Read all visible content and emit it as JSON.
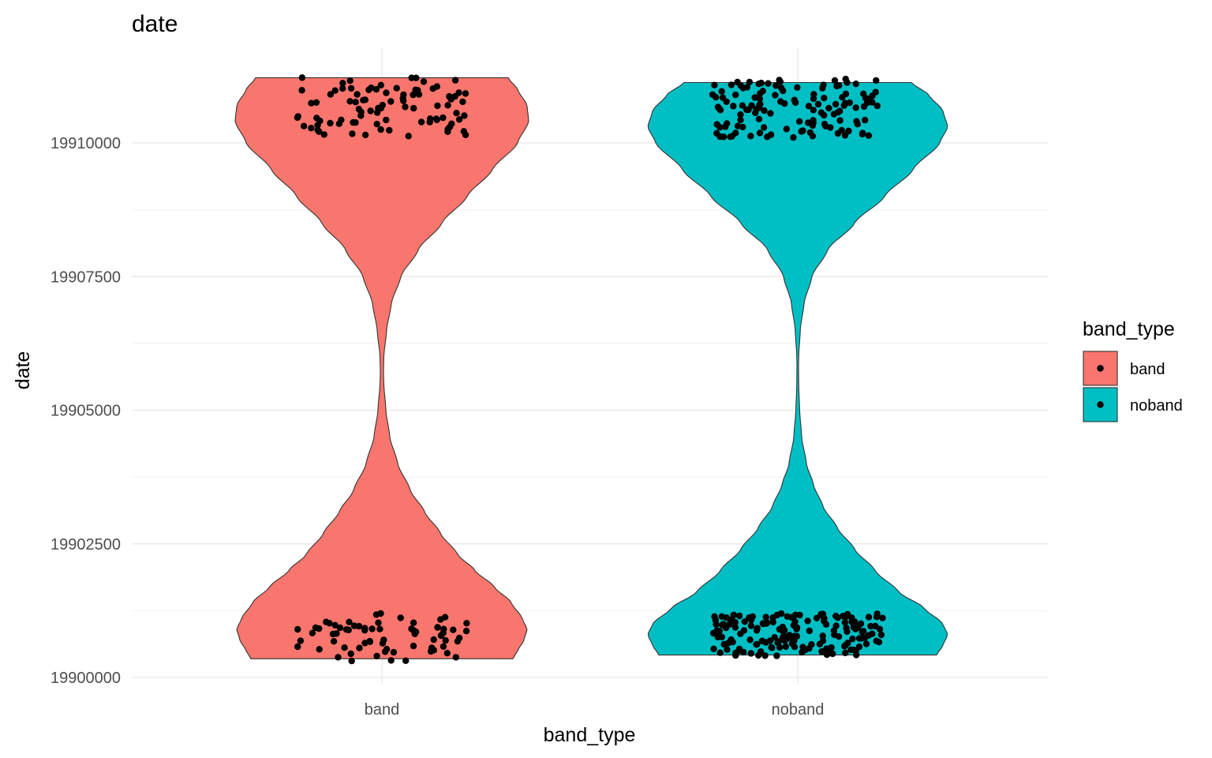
{
  "chart_data": {
    "type": "violin",
    "title": "date",
    "xlabel": "band_type",
    "ylabel": "date",
    "categories": [
      "band",
      "noband"
    ],
    "y_ticks": [
      19900000,
      19902500,
      19905000,
      19907500,
      19910000
    ],
    "y_tick_labels": [
      "19900000",
      "19902500",
      "19905000",
      "19907500",
      "19910000"
    ],
    "ylim": [
      19900000,
      19911250
    ],
    "grid": true,
    "legend": {
      "title": "band_type",
      "placement": "right",
      "entries": [
        {
          "label": "band",
          "color": "#F8766D"
        },
        {
          "label": "noband",
          "color": "#00BFC4"
        }
      ]
    },
    "series": [
      {
        "category": "band",
        "color": "#F8766D",
        "y_min": 19900350,
        "y_max": 19911220,
        "density_profile": [
          [
            19900350,
            0.83
          ],
          [
            19900500,
            0.86
          ],
          [
            19900700,
            0.9
          ],
          [
            19900900,
            0.92
          ],
          [
            19901100,
            0.89
          ],
          [
            19901400,
            0.82
          ],
          [
            19901700,
            0.71
          ],
          [
            19902000,
            0.59
          ],
          [
            19902300,
            0.48
          ],
          [
            19902700,
            0.37
          ],
          [
            19903100,
            0.27
          ],
          [
            19903500,
            0.18
          ],
          [
            19904000,
            0.1
          ],
          [
            19904500,
            0.05
          ],
          [
            19905000,
            0.025
          ],
          [
            19905500,
            0.012
          ],
          [
            19905700,
            0.01
          ],
          [
            19906000,
            0.012
          ],
          [
            19906500,
            0.03
          ],
          [
            19907000,
            0.06
          ],
          [
            19907500,
            0.12
          ],
          [
            19908000,
            0.23
          ],
          [
            19908500,
            0.38
          ],
          [
            19909000,
            0.54
          ],
          [
            19909500,
            0.7
          ],
          [
            19910000,
            0.86
          ],
          [
            19910400,
            0.93
          ],
          [
            19910700,
            0.92
          ],
          [
            19911000,
            0.86
          ],
          [
            19911220,
            0.8
          ]
        ],
        "point_ranges": [
          [
            19900300,
            19901200
          ],
          [
            19910100,
            19911250
          ]
        ],
        "point_counts": [
          70,
          90
        ]
      },
      {
        "category": "noband",
        "color": "#00BFC4",
        "y_min": 19900420,
        "y_max": 19911130,
        "density_profile": [
          [
            19900420,
            0.88
          ],
          [
            19900600,
            0.92
          ],
          [
            19900800,
            0.95
          ],
          [
            19901000,
            0.92
          ],
          [
            19901300,
            0.8
          ],
          [
            19901600,
            0.64
          ],
          [
            19902000,
            0.49
          ],
          [
            19902400,
            0.36
          ],
          [
            19902800,
            0.25
          ],
          [
            19903200,
            0.16
          ],
          [
            19903600,
            0.1
          ],
          [
            19904000,
            0.055
          ],
          [
            19904500,
            0.025
          ],
          [
            19905000,
            0.012
          ],
          [
            19905500,
            0.006
          ],
          [
            19905800,
            0.005
          ],
          [
            19906000,
            0.006
          ],
          [
            19906500,
            0.016
          ],
          [
            19907000,
            0.04
          ],
          [
            19907500,
            0.09
          ],
          [
            19908000,
            0.19
          ],
          [
            19908500,
            0.36
          ],
          [
            19909000,
            0.55
          ],
          [
            19909500,
            0.73
          ],
          [
            19910000,
            0.9
          ],
          [
            19910300,
            0.95
          ],
          [
            19910600,
            0.92
          ],
          [
            19910900,
            0.83
          ],
          [
            19911130,
            0.72
          ]
        ],
        "point_ranges": [
          [
            19900400,
            19901200
          ],
          [
            19910100,
            19911200
          ]
        ],
        "point_counts": [
          170,
          130
        ]
      }
    ]
  }
}
